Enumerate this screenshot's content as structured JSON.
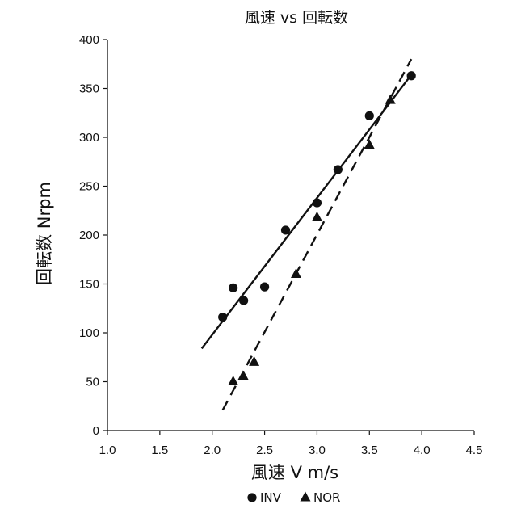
{
  "chart_data": {
    "type": "scatter",
    "title": "風速 vs 回転数",
    "xlabel": "風速 V m/s",
    "ylabel": "回転数 Nrpm",
    "xlim": [
      1.0,
      4.5
    ],
    "ylim": [
      0,
      400
    ],
    "x_ticks": [
      "1.0",
      "1.5",
      "2.0",
      "2.5",
      "3.0",
      "3.5",
      "4.0",
      "4.5"
    ],
    "y_ticks": [
      "0",
      "50",
      "100",
      "150",
      "200",
      "250",
      "300",
      "350",
      "400"
    ],
    "grid": false,
    "legend_position": "bottom",
    "series": [
      {
        "name": "INV",
        "marker": "circle",
        "color": "#111111",
        "points": [
          {
            "x": 2.1,
            "y": 116
          },
          {
            "x": 2.2,
            "y": 146
          },
          {
            "x": 2.3,
            "y": 133
          },
          {
            "x": 2.5,
            "y": 147
          },
          {
            "x": 2.7,
            "y": 205
          },
          {
            "x": 3.0,
            "y": 233
          },
          {
            "x": 3.2,
            "y": 267
          },
          {
            "x": 3.5,
            "y": 322
          },
          {
            "x": 3.9,
            "y": 363
          }
        ],
        "trendline": {
          "style": "solid",
          "x_range": [
            1.9,
            3.9
          ],
          "y_range": [
            84,
            364
          ]
        }
      },
      {
        "name": "NOR",
        "marker": "triangle",
        "color": "#111111",
        "points": [
          {
            "x": 2.2,
            "y": 50
          },
          {
            "x": 2.3,
            "y": 55
          },
          {
            "x": 2.4,
            "y": 70
          },
          {
            "x": 2.8,
            "y": 160
          },
          {
            "x": 3.0,
            "y": 218
          },
          {
            "x": 3.5,
            "y": 292
          },
          {
            "x": 3.7,
            "y": 338
          }
        ],
        "trendline": {
          "style": "dashed",
          "x_range": [
            2.1,
            3.9
          ],
          "y_range": [
            21,
            380
          ]
        }
      }
    ]
  }
}
